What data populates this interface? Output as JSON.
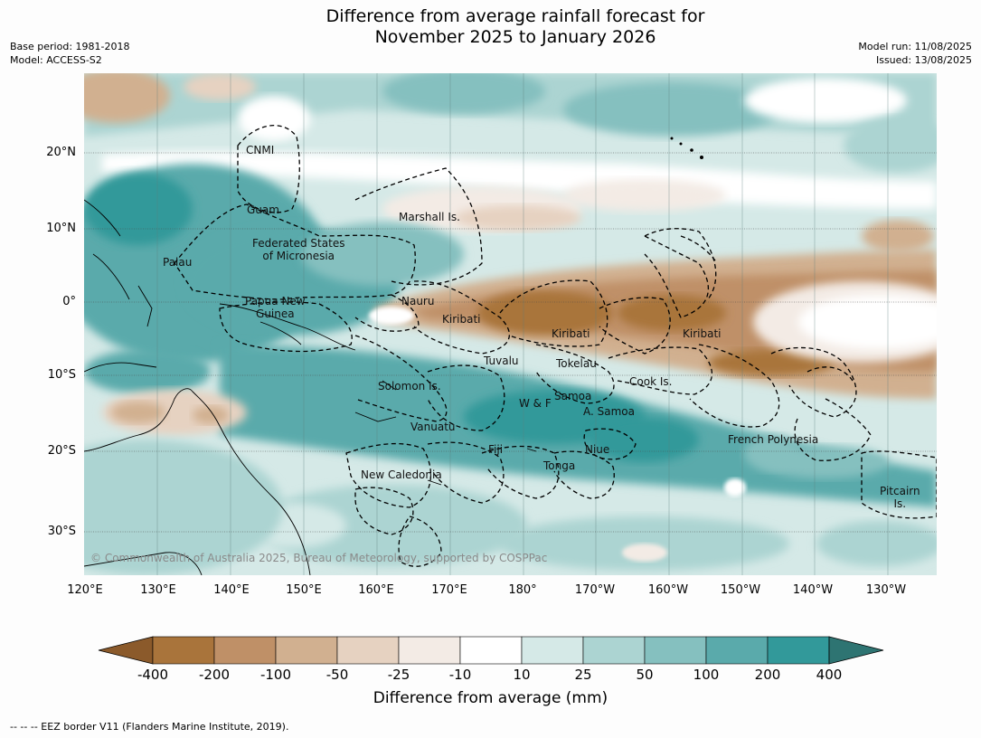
{
  "title_line1": "Difference from average rainfall forecast for",
  "title_line2": "November 2025 to January 2026",
  "meta_left": {
    "base_period": "Base period: 1981-2018",
    "model": "Model: ACCESS-S2"
  },
  "meta_right": {
    "model_run": "Model run: 11/08/2025",
    "issued": "Issued: 13/08/2025"
  },
  "lat_labels": [
    "20°N",
    "10°N",
    "0°",
    "10°S",
    "20°S",
    "30°S"
  ],
  "lon_labels": [
    "120°E",
    "130°E",
    "140°E",
    "150°E",
    "160°E",
    "170°E",
    "180°",
    "170°W",
    "160°W",
    "150°W",
    "140°W",
    "130°W"
  ],
  "regions": {
    "cnmi": "CNMI",
    "guam": "Guam",
    "marshall": "Marshall Is.",
    "fsm_1": "Federated States",
    "fsm_2": "of Micronesia",
    "palau": "Palau",
    "png_1": "Papua New",
    "png_2": "Guinea",
    "nauru": "Nauru",
    "kiribati_w": "Kiribati",
    "kiribati_c": "Kiribati",
    "kiribati_e": "Kiribati",
    "tuvalu": "Tuvalu",
    "tokelau": "Tokelau",
    "cook": "Cook Is.",
    "solomon": "Solomon Is.",
    "samoa": "Samoa",
    "wf": "W & F",
    "asamoa": "A. Samoa",
    "vanuatu": "Vanuatu",
    "fiji": "Fiji",
    "niue": "Niue",
    "tonga": "Tonga",
    "new_caledonia": "New Caledonia",
    "french_polynesia": "French Polynesia",
    "pitcairn_1": "Pitcairn",
    "pitcairn_2": "Is."
  },
  "copyright": "© Commonwealth of Australia 2025, Bureau of Meteorology, supported by COSPPac",
  "colorbar": {
    "title": "Difference from average (mm)",
    "ticks": [
      "-400",
      "-200",
      "-100",
      "-50",
      "-25",
      "-10",
      "10",
      "25",
      "50",
      "100",
      "200",
      "400"
    ],
    "colors": [
      "#8b5a2b",
      "#a9743b",
      "#bf9067",
      "#d1b090",
      "#e6d2c1",
      "#f3ebe5",
      "#ffffff",
      "#d5e9e7",
      "#acd4d2",
      "#85c0bf",
      "#5aaaab",
      "#32999a",
      "#2e7472"
    ]
  },
  "footnote": "--  --  -- EEZ border V11 (Flanders Marine Institute, 2019)."
}
